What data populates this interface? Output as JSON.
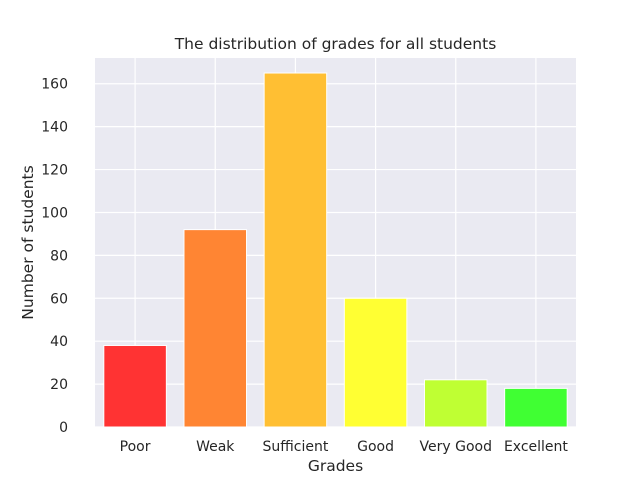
{
  "chart_data": {
    "type": "bar",
    "title": "The distribution of grades for all students",
    "xlabel": "Grades",
    "ylabel": "Number of students",
    "categories": [
      "Poor",
      "Weak",
      "Sufficient",
      "Good",
      "Very Good",
      "Excellent"
    ],
    "values": [
      38,
      92,
      165,
      60,
      22,
      18
    ],
    "colors": [
      "#ff3333",
      "#ff8533",
      "#ffbf33",
      "#ffff33",
      "#bfff33",
      "#40ff33"
    ],
    "ylim": [
      0,
      172
    ],
    "yticks": [
      0,
      20,
      40,
      60,
      80,
      100,
      120,
      140,
      160
    ],
    "grid": true,
    "plot_background": "#eaeaf2",
    "grid_color": "#ffffff"
  }
}
